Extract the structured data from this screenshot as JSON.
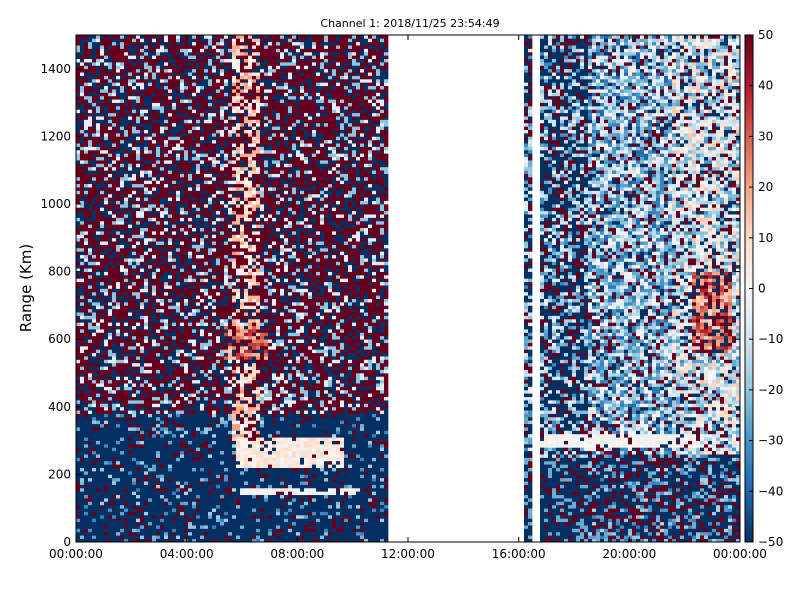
{
  "chart_data": {
    "type": "heatmap",
    "title": "Channel 1: 2018/11/25 23:54:49",
    "xlabel": "",
    "ylabel": "Range (Km)",
    "xlim": [
      "00:00:00",
      "00:00:00 (+1 day)"
    ],
    "ylim": [
      0,
      1500
    ],
    "x_ticks": [
      "00:00:00",
      "04:00:00",
      "08:00:00",
      "12:00:00",
      "16:00:00",
      "20:00:00",
      "00:00:00"
    ],
    "y_ticks": [
      "0",
      "200",
      "400",
      "600",
      "800",
      "1000",
      "1200",
      "1400"
    ],
    "colorbar": {
      "colormap": "RdBu_r",
      "range": [
        -50,
        50
      ],
      "ticks": [
        "50",
        "40",
        "30",
        "20",
        "10",
        "0",
        "−10",
        "−20",
        "−30",
        "−40",
        "−50"
      ]
    },
    "data_gaps": [
      {
        "start": "11:20:00",
        "end": "16:10:00"
      },
      {
        "start": "16:30:00",
        "end": "16:45:00"
      }
    ],
    "features": [
      {
        "type": "echo_band",
        "time_range": [
          "06:00:00",
          "10:20:00"
        ],
        "range_km": [
          140,
          160
        ],
        "approx_value": 0
      },
      {
        "type": "echo_band",
        "time_range": [
          "05:50:00",
          "09:40:00"
        ],
        "range_km": [
          220,
          310
        ],
        "approx_value": 5
      },
      {
        "type": "echo_band",
        "time_range": [
          "16:40:00",
          "22:30:00"
        ],
        "range_km": [
          280,
          320
        ],
        "approx_value": 0
      },
      {
        "type": "echo_region",
        "time_range": [
          "05:20:00",
          "07:00:00"
        ],
        "range_km": [
          540,
          640
        ],
        "approx_value": 25
      },
      {
        "type": "echo_region",
        "time_range": [
          "22:20:00",
          "23:40:00"
        ],
        "range_km": [
          560,
          800
        ],
        "approx_value": 25
      }
    ]
  }
}
